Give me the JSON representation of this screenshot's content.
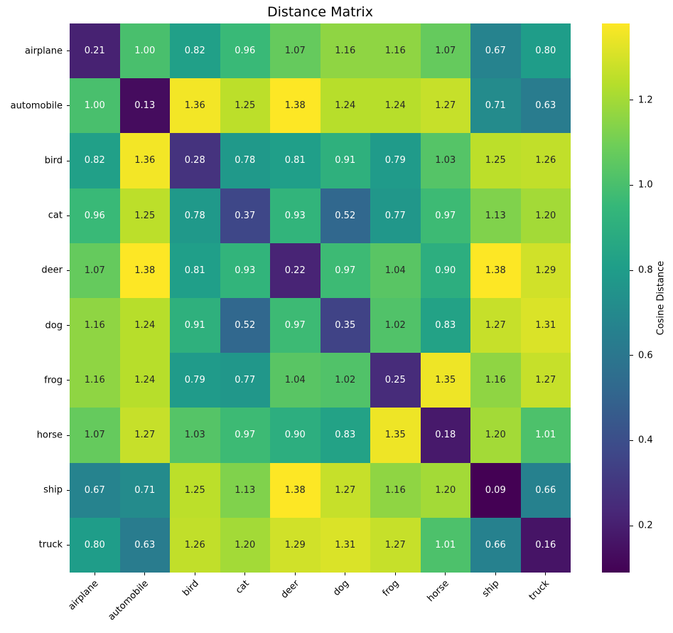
{
  "title": "Distance Matrix",
  "chart_data": {
    "type": "heatmap",
    "title": "Distance Matrix",
    "categories": [
      "airplane",
      "automobile",
      "bird",
      "cat",
      "deer",
      "dog",
      "frog",
      "horse",
      "ship",
      "truck"
    ],
    "matrix": [
      [
        0.21,
        1.0,
        0.82,
        0.96,
        1.07,
        1.16,
        1.16,
        1.07,
        0.67,
        0.8
      ],
      [
        1.0,
        0.13,
        1.36,
        1.25,
        1.38,
        1.24,
        1.24,
        1.27,
        0.71,
        0.63
      ],
      [
        0.82,
        1.36,
        0.28,
        0.78,
        0.81,
        0.91,
        0.79,
        1.03,
        1.25,
        1.26
      ],
      [
        0.96,
        1.25,
        0.78,
        0.37,
        0.93,
        0.52,
        0.77,
        0.97,
        1.13,
        1.2
      ],
      [
        1.07,
        1.38,
        0.81,
        0.93,
        0.22,
        0.97,
        1.04,
        0.9,
        1.38,
        1.29
      ],
      [
        1.16,
        1.24,
        0.91,
        0.52,
        0.97,
        0.35,
        1.02,
        0.83,
        1.27,
        1.31
      ],
      [
        1.16,
        1.24,
        0.79,
        0.77,
        1.04,
        1.02,
        0.25,
        1.35,
        1.16,
        1.27
      ],
      [
        1.07,
        1.27,
        1.03,
        0.97,
        0.9,
        0.83,
        1.35,
        0.18,
        1.2,
        1.01
      ],
      [
        0.67,
        0.71,
        1.25,
        1.13,
        1.38,
        1.27,
        1.16,
        1.2,
        0.09,
        0.66
      ],
      [
        0.8,
        0.63,
        1.26,
        1.2,
        1.29,
        1.31,
        1.27,
        1.01,
        0.66,
        0.16
      ]
    ],
    "vmin": 0.09,
    "vmax": 1.38,
    "cell_value_decimals": 2,
    "colormap": "viridis",
    "colorbar_label": "Cosine Distance",
    "colorbar_ticks": [
      1.2,
      1.0,
      0.8,
      0.6,
      0.4,
      0.2
    ],
    "colorbar_tick_decimals": 1,
    "x_tick_rotation_deg": 45,
    "grid": false,
    "legend_position": "right-colorbar"
  },
  "colors": {
    "background": "#ffffff",
    "viridis_stops": [
      "#440154",
      "#482878",
      "#3e4989",
      "#31688e",
      "#26828e",
      "#1f9e89",
      "#35b779",
      "#6ece58",
      "#b5de2b",
      "#fde725"
    ],
    "annot_light": "#ffffff",
    "annot_dark": "#262626",
    "tick_text": "#000000",
    "luminance_threshold": 0.408
  }
}
